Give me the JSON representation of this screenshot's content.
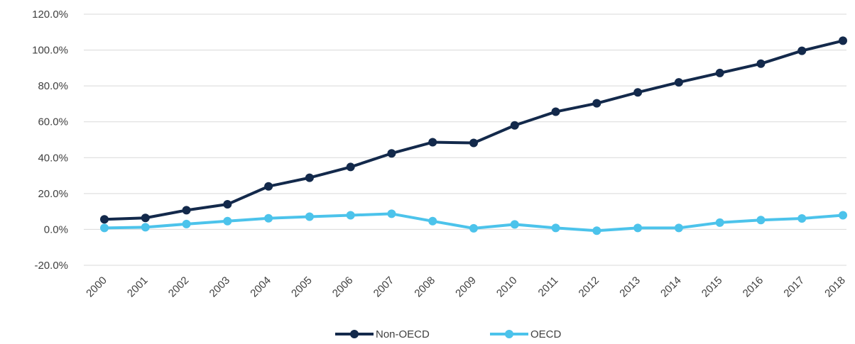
{
  "chart_data": {
    "type": "line",
    "title": "",
    "xlabel": "",
    "ylabel": "",
    "x": [
      "2000",
      "2001",
      "2002",
      "2003",
      "2004",
      "2005",
      "2006",
      "2007",
      "2008",
      "2009",
      "2010",
      "2011",
      "2012",
      "2013",
      "2014",
      "2015",
      "2016",
      "2017",
      "2018"
    ],
    "ylim": [
      -20,
      120
    ],
    "yticks": [
      -20,
      0,
      20,
      40,
      60,
      80,
      100,
      120
    ],
    "ytick_labels": [
      "-20.0%",
      "0.0%",
      "20.0%",
      "40.0%",
      "60.0%",
      "80.0%",
      "100.0%",
      "120.0%"
    ],
    "grid": true,
    "legend_position": "bottom",
    "series": [
      {
        "name": "Non-OECD",
        "color": "#13294b",
        "values": [
          5.6,
          6.4,
          10.7,
          14.0,
          24.0,
          28.8,
          34.8,
          42.4,
          48.6,
          48.2,
          58.0,
          65.6,
          70.3,
          76.4,
          82.0,
          87.2,
          92.4,
          99.6,
          105.2
        ]
      },
      {
        "name": "OECD",
        "color": "#4cc3eb",
        "values": [
          0.8,
          1.2,
          3.0,
          4.6,
          6.2,
          7.1,
          7.9,
          8.7,
          4.6,
          0.6,
          2.8,
          0.8,
          -0.7,
          0.8,
          0.8,
          3.8,
          5.2,
          6.1,
          7.9
        ]
      }
    ]
  }
}
